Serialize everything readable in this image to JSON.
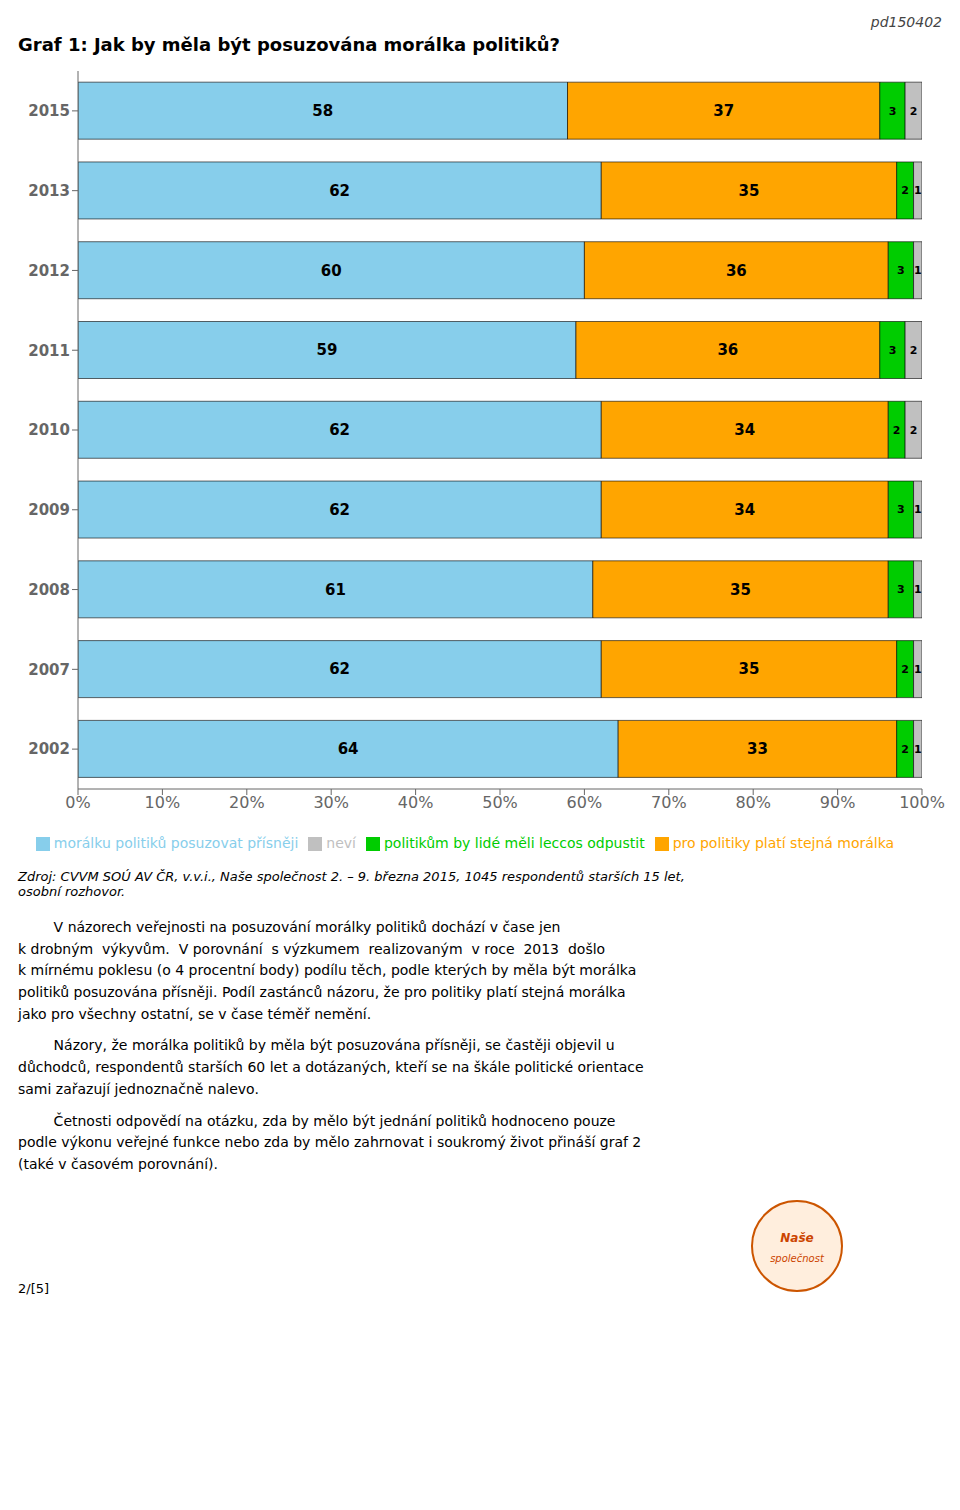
{
  "chart_data": {
    "type": "bar",
    "orientation": "horizontal",
    "stacked": true,
    "data_labels": true,
    "grid": false,
    "legend": "bottom",
    "title": "Graf 1: Jak by měla být posuzována morálka politiků?",
    "categories": [
      "2015",
      "2013",
      "2012",
      "2011",
      "2010",
      "2009",
      "2008",
      "2007",
      "2002"
    ],
    "series": [
      {
        "name": "morálku politiků posuzovat přísněji",
        "color": "#87CEEB",
        "values": [
          58,
          62,
          60,
          59,
          62,
          62,
          61,
          62,
          64
        ]
      },
      {
        "name": "pro politiky platí stejná morálka",
        "color": "#FFA500",
        "values": [
          37,
          35,
          36,
          36,
          34,
          34,
          35,
          35,
          33
        ]
      },
      {
        "name": "politikům by lidé měli leccos odpustit",
        "color": "#00CC00",
        "values": [
          3,
          2,
          3,
          3,
          2,
          3,
          3,
          2,
          2
        ]
      },
      {
        "name": "neví",
        "color": "#C0C0C0",
        "values": [
          2,
          1,
          1,
          2,
          2,
          1,
          1,
          1,
          1
        ]
      }
    ],
    "xlim": [
      0,
      100
    ],
    "xticks": [
      {
        "value": 0,
        "label": "0%"
      },
      {
        "value": 10,
        "label": "10%"
      },
      {
        "value": 20,
        "label": "20%"
      },
      {
        "value": 30,
        "label": "30%"
      },
      {
        "value": 40,
        "label": "40%"
      },
      {
        "value": 50,
        "label": "50%"
      },
      {
        "value": 60,
        "label": "60%"
      },
      {
        "value": 70,
        "label": "70%"
      },
      {
        "value": 80,
        "label": "80%"
      },
      {
        "value": 90,
        "label": "90%"
      },
      {
        "value": 100,
        "label": "100%"
      }
    ],
    "annotations": [
      "pd150402",
      "Zdroj: CVVM SOÚ AV ČR, v.v.i., Naše společnost 2. – 9. března 2015, 1045 respondentů starších 15 let,\nosobní rozhovor.",
      "        V názorech veřejnosti na posuzování morálky politiků dochází v čase jen\nk drobným  výkyvům.  V porovnání  s výzkumem  realizovaným  v roce  2013  došlo\nk mírnému poklesu (o 4 procentní body) podílu těch, podle kterých by měla být morálka\npolitiků posuzována přísněji. Podíl zastánců názoru, že pro politiky platí stejná morálka\njako pro všechny ostatní, se v čase téměř nemění.",
      "        Názory, že morálka politiků by měla být posuzována přísněji, se častěji objevil u\ndůchodců, respondentů starších 60 let a dotázaných, kteří se na škále politické orientace\nsami zařazují jednoznačně nalevo.",
      "        Četnosti odpovědí na otázku, zda by mělo být jednání politiků hodnoceno pouze\npodle výkonu veřejné funkce nebo zda by mělo zahrnovat i soukromý život přináší graf 2\n(také v časovém porovnání).",
      "2/[5]",
      "Naše",
      "společnost"
    ]
  }
}
